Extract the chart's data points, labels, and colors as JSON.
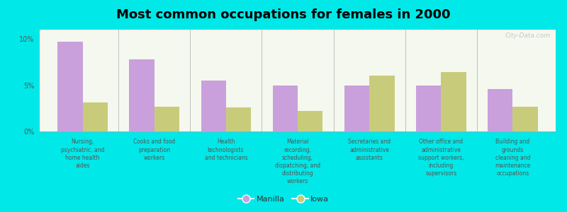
{
  "title": "Most common occupations for females in 2000",
  "categories": [
    "Nursing,\npsychiatric, and\nhome health\naides",
    "Cooks and food\npreparation\nworkers",
    "Health\ntechnologists\nand technicians",
    "Material\nrecording,\nscheduling,\ndispatching, and\ndistributing\nworkers",
    "Secretaries and\nadministrative\nassistants",
    "Other office and\nadministrative\nsupport workers,\nincluding\nsupervisors",
    "Building and\ngrounds\ncleaning and\nmaintenance\noccupations"
  ],
  "manilla_values": [
    9.7,
    7.8,
    5.5,
    5.0,
    5.0,
    5.0,
    4.6
  ],
  "iowa_values": [
    3.1,
    2.7,
    2.6,
    2.2,
    6.0,
    6.4,
    2.7
  ],
  "manilla_color": "#c9a0dc",
  "iowa_color": "#c8cc7a",
  "background_color": "#00e8e8",
  "plot_bg_top": "#f5f8ee",
  "plot_bg_bottom": "#e8f0d8",
  "ylim": [
    0,
    11
  ],
  "yticks": [
    0,
    5,
    10
  ],
  "ytick_labels": [
    "0%",
    "5%",
    "10%"
  ],
  "bar_width": 0.35,
  "legend_labels": [
    "Manilla",
    "Iowa"
  ],
  "watermark": "City-Data.com"
}
